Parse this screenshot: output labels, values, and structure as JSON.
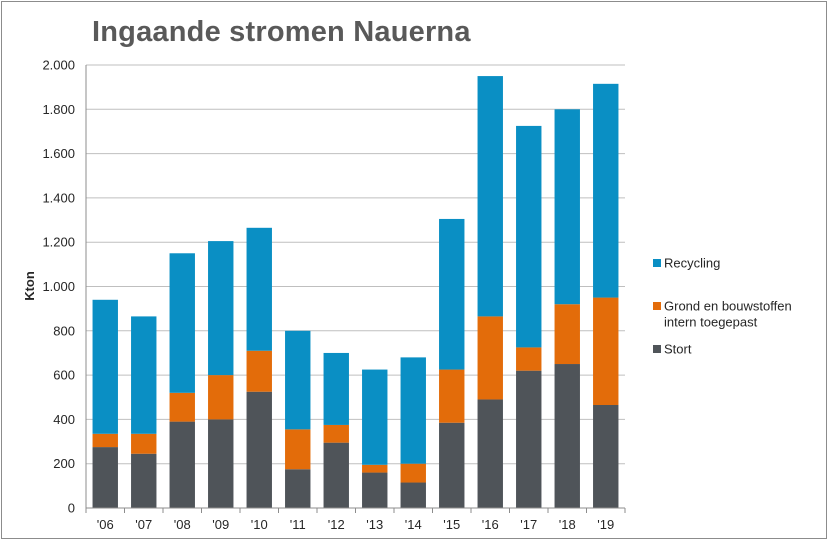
{
  "chart_data": {
    "type": "bar",
    "stacked": true,
    "title": "Ingaande stromen Nauerna",
    "ylabel": "Kton",
    "xlabel": "",
    "ylim": [
      0,
      2000
    ],
    "yticks": [
      0,
      200,
      400,
      600,
      800,
      1000,
      1200,
      1400,
      1600,
      1800,
      2000
    ],
    "ytick_labels": [
      "0",
      "200",
      "400",
      "600",
      "800",
      "1.000",
      "1.200",
      "1.400",
      "1.600",
      "1.800",
      "2.000"
    ],
    "grid": true,
    "legend_position": "right",
    "categories": [
      "'06",
      "'07",
      "'08",
      "'09",
      "'10",
      "'11",
      "'12",
      "'13",
      "'14",
      "'15",
      "'16",
      "'17",
      "'18",
      "'19"
    ],
    "series": [
      {
        "name": "Stort",
        "color": "#4f5459",
        "values": [
          275,
          245,
          390,
          400,
          525,
          175,
          295,
          160,
          115,
          385,
          490,
          620,
          650,
          465
        ]
      },
      {
        "name": "Grond en bouwstoffen intern toegepast",
        "color": "#e36c0a",
        "values": [
          60,
          90,
          130,
          200,
          185,
          180,
          80,
          35,
          85,
          240,
          375,
          105,
          270,
          485
        ]
      },
      {
        "name": "Recycling",
        "color": "#0a8fc4",
        "values": [
          605,
          530,
          630,
          605,
          555,
          445,
          325,
          430,
          480,
          680,
          1085,
          1000,
          880,
          965
        ]
      }
    ],
    "legend": [
      {
        "name_lines": [
          "Recycling"
        ],
        "color": "#0a8fc4"
      },
      {
        "name_lines": [
          "Grond en bouwstoffen",
          "intern toegepast"
        ],
        "color": "#e36c0a"
      },
      {
        "name_lines": [
          "Stort"
        ],
        "color": "#4f5459"
      }
    ]
  }
}
